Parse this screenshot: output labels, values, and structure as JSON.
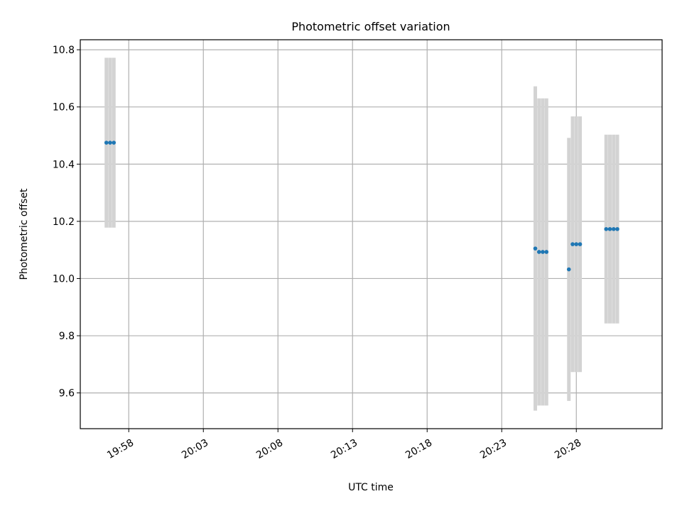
{
  "chart_data": {
    "type": "scatter",
    "title": "Photometric offset variation",
    "xlabel": "UTC time",
    "ylabel": "Photometric offset",
    "xlim": [
      "19:54:45",
      "20:33:45"
    ],
    "ylim": [
      9.475,
      10.835
    ],
    "x_ticks": [
      "19:58",
      "20:03",
      "20:08",
      "20:13",
      "20:18",
      "20:23",
      "20:28"
    ],
    "y_ticks": [
      "9.6",
      "9.8",
      "10.0",
      "10.2",
      "10.4",
      "10.6",
      "10.8"
    ],
    "grid": true,
    "colors": {
      "point": "#1f77b4",
      "errorbar": "#d3d3d3",
      "grid": "#b0b0b0",
      "axes": "#000000"
    },
    "points": [
      {
        "t": "19:56:30",
        "y": 10.475,
        "err": 0.297
      },
      {
        "t": "19:56:45",
        "y": 10.475,
        "err": 0.297
      },
      {
        "t": "19:57:00",
        "y": 10.475,
        "err": 0.297
      },
      {
        "t": "20:25:15",
        "y": 10.105,
        "err": 0.567
      },
      {
        "t": "20:25:30",
        "y": 10.093,
        "err": 0.537
      },
      {
        "t": "20:25:45",
        "y": 10.093,
        "err": 0.537
      },
      {
        "t": "20:26:00",
        "y": 10.093,
        "err": 0.537
      },
      {
        "t": "20:27:30",
        "y": 10.032,
        "err": 0.46
      },
      {
        "t": "20:27:45",
        "y": 10.12,
        "err": 0.447
      },
      {
        "t": "20:28:00",
        "y": 10.12,
        "err": 0.447
      },
      {
        "t": "20:28:15",
        "y": 10.12,
        "err": 0.447
      },
      {
        "t": "20:30:00",
        "y": 10.173,
        "err": 0.33
      },
      {
        "t": "20:30:15",
        "y": 10.173,
        "err": 0.33
      },
      {
        "t": "20:30:30",
        "y": 10.173,
        "err": 0.33
      },
      {
        "t": "20:30:45",
        "y": 10.173,
        "err": 0.33
      }
    ]
  }
}
